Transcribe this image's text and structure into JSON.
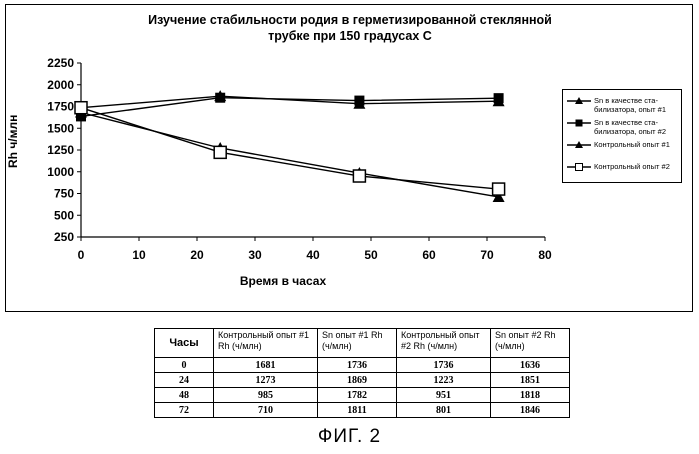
{
  "chart_data": {
    "type": "line",
    "title": "Изучение стабильности родия в герметизированной стеклянной трубке при 150 градусах С",
    "xlabel": "Время в часах",
    "ylabel": "Rh ч/млн",
    "xlim": [
      0,
      80
    ],
    "ylim": [
      250,
      2250
    ],
    "xticks": [
      "0",
      "10",
      "20",
      "30",
      "40",
      "50",
      "60",
      "70",
      "80"
    ],
    "yticks": [
      "250",
      "500",
      "750",
      "1000",
      "1250",
      "1500",
      "1750",
      "2000",
      "2250"
    ],
    "x": [
      0,
      24,
      48,
      72
    ],
    "legend_position": "right",
    "series": [
      {
        "name": "Sn в качестве ста-билизатора, опыт #1",
        "marker": "triangle",
        "values": [
          1736,
          1869,
          1782,
          1811
        ]
      },
      {
        "name": "Sn в качестве ста-билизатора, опыт #2",
        "marker": "square",
        "values": [
          1636,
          1851,
          1818,
          1846
        ]
      },
      {
        "name": "Контрольный опыт #1",
        "marker": "triangle",
        "values": [
          1681,
          1273,
          985,
          710
        ]
      },
      {
        "name": "Контрольный опыт #2",
        "marker": "square-open",
        "values": [
          1736,
          1223,
          951,
          801
        ]
      }
    ]
  },
  "table": {
    "headers": [
      "Часы",
      "Контрольный опыт #1 Rh (ч/млн)",
      "Sn опыт #1 Rh (ч/млн)",
      "Контрольный опыт #2 Rh (ч/млн)",
      "Sn опыт #2 Rh (ч/млн)"
    ],
    "rows": [
      [
        "0",
        "1681",
        "1736",
        "1736",
        "1636"
      ],
      [
        "24",
        "1273",
        "1869",
        "1223",
        "1851"
      ],
      [
        "48",
        "985",
        "1782",
        "951",
        "1818"
      ],
      [
        "72",
        "710",
        "1811",
        "801",
        "1846"
      ]
    ]
  },
  "figure_caption": "ФИГ. 2"
}
